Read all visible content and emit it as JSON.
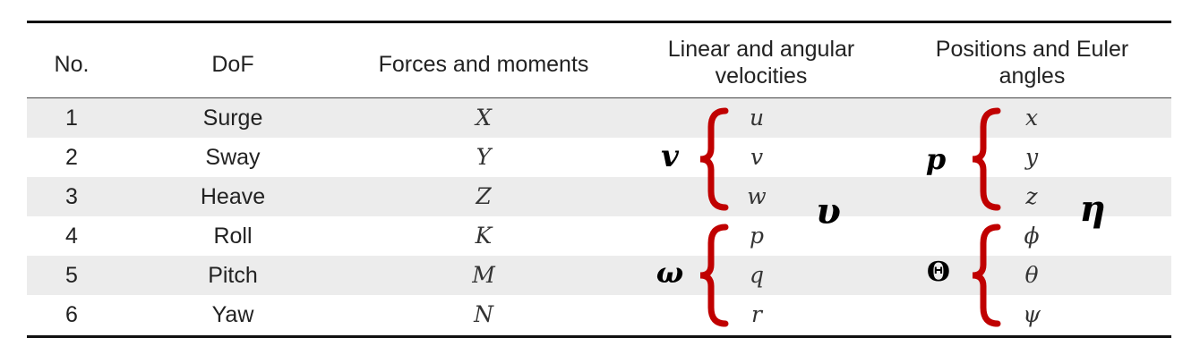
{
  "table": {
    "headers": {
      "no": "No.",
      "dof": "DoF",
      "forces": "Forces and moments",
      "velocities_line1": "Linear and angular",
      "velocities_line2": "velocities",
      "positions_line1": "Positions and Euler",
      "positions_line2": "angles"
    },
    "rows": [
      {
        "no": "1",
        "dof": "Surge",
        "force": "X",
        "velocity": "u",
        "position": "x"
      },
      {
        "no": "2",
        "dof": "Sway",
        "force": "Y",
        "velocity": "v",
        "position": "y"
      },
      {
        "no": "3",
        "dof": "Heave",
        "force": "Z",
        "velocity": "w",
        "position": "z"
      },
      {
        "no": "4",
        "dof": "Roll",
        "force": "K",
        "velocity": "p",
        "position": "ϕ"
      },
      {
        "no": "5",
        "dof": "Pitch",
        "force": "M",
        "velocity": "q",
        "position": "θ"
      },
      {
        "no": "6",
        "dof": "Yaw",
        "force": "N",
        "velocity": "r",
        "position": "ψ"
      }
    ]
  },
  "groups": {
    "linear_velocity_symbol": "v",
    "angular_velocity_symbol": "ω",
    "velocity_vector_symbol": "υ",
    "position_symbol": "p",
    "euler_symbol": "Θ",
    "pose_vector_symbol": "η"
  },
  "colors": {
    "brace": "#c00000",
    "stripe": "#ececec",
    "rule": "#111111"
  }
}
